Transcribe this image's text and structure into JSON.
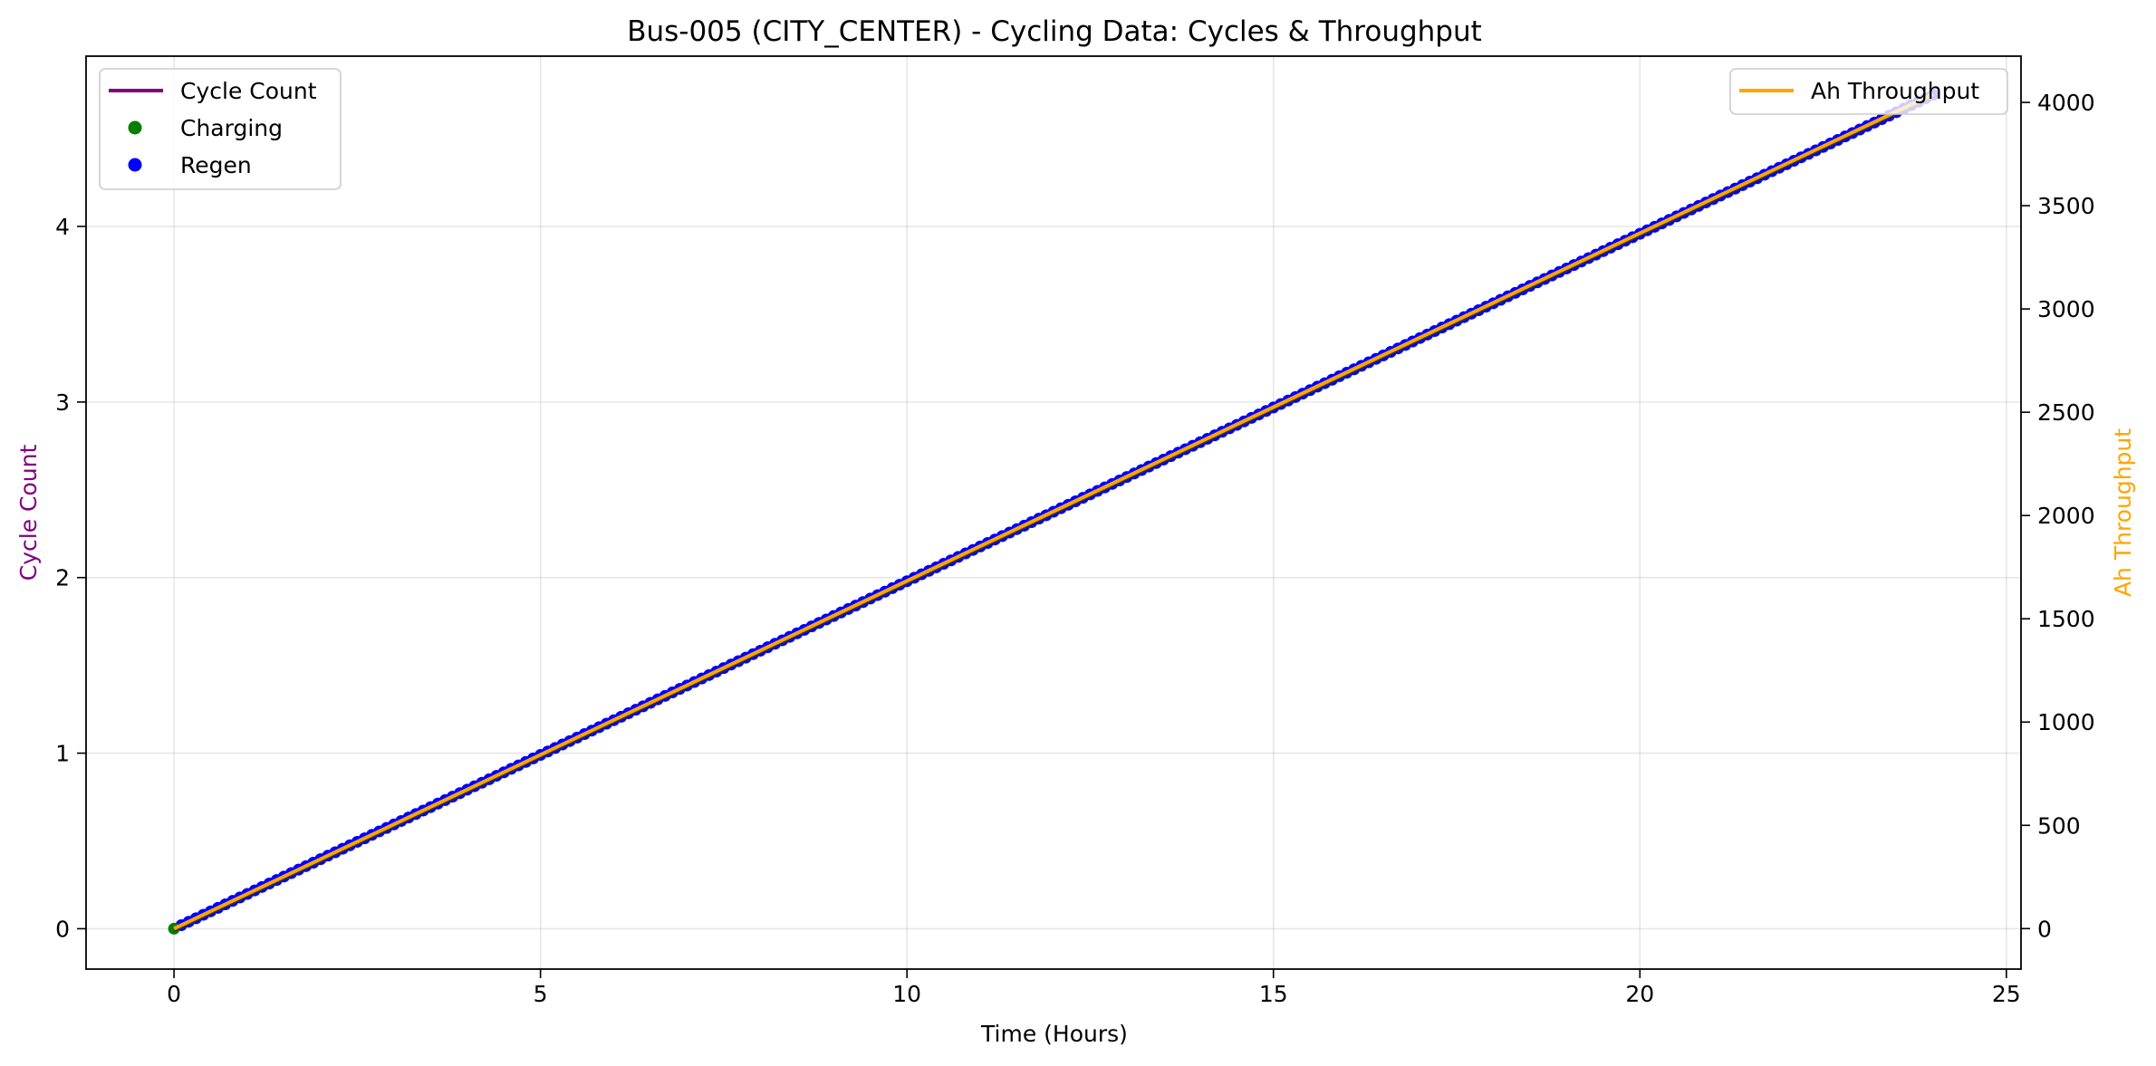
{
  "chart_data": {
    "type": "line",
    "title": "Bus-005 (CITY_CENTER) - Cycling Data: Cycles & Throughput",
    "xlabel": "Time (Hours)",
    "xlim": [
      -1.2,
      25.2
    ],
    "xticks": [
      0,
      5,
      10,
      15,
      20,
      25
    ],
    "grid": true,
    "left_axis": {
      "label": "Cycle Count",
      "color": "#800080",
      "ylim": [
        -0.23,
        4.97
      ],
      "ticks": [
        0,
        1,
        2,
        3,
        4
      ]
    },
    "right_axis": {
      "label": "Ah Throughput",
      "color": "#ffa500",
      "ylim": [
        -196,
        4224
      ],
      "ticks": [
        0,
        500,
        1000,
        1500,
        2000,
        2500,
        3000,
        3500,
        4000
      ]
    },
    "series": [
      {
        "name": "Cycle Count",
        "axis": "left",
        "kind": "line",
        "color": "#800080",
        "x_range": [
          0,
          24
        ],
        "y_range": [
          0,
          4.75
        ]
      },
      {
        "name": "Ah Throughput",
        "axis": "right",
        "kind": "line",
        "color": "#ffa500",
        "x_range": [
          0,
          24
        ],
        "y_range": [
          0,
          4040
        ]
      },
      {
        "name": "Charging",
        "axis": "left",
        "kind": "scatter",
        "color": "#008000",
        "points": [
          [
            0,
            0
          ]
        ]
      },
      {
        "name": "Regen",
        "axis": "left",
        "kind": "scatter",
        "color": "#0000ff",
        "x_range": [
          0.1,
          24
        ],
        "y_range": [
          0.02,
          4.75
        ],
        "step": 0.1
      }
    ],
    "legends": [
      {
        "position": "upper-left",
        "entries": [
          "Cycle Count",
          "Charging",
          "Regen"
        ]
      },
      {
        "position": "upper-right",
        "entries": [
          "Ah Throughput"
        ]
      }
    ]
  }
}
